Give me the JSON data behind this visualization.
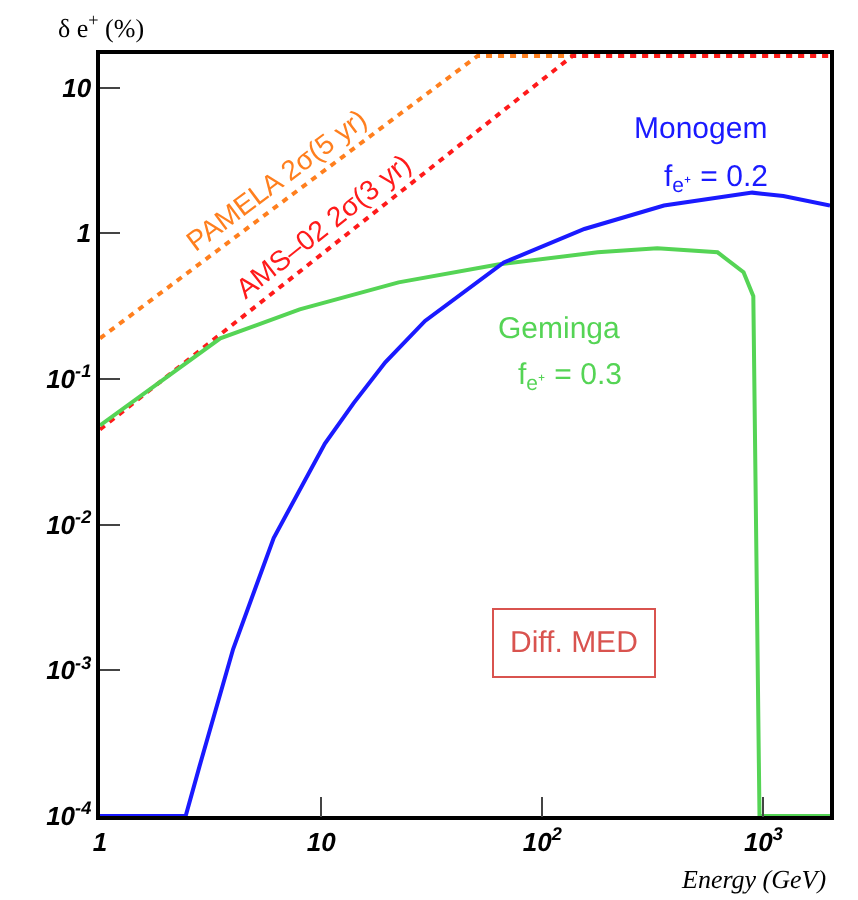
{
  "chart_data": {
    "type": "line",
    "ylabel": "δ e$^{+}$ (%)",
    "xlabel": "Energy (GeV)",
    "log": "xy",
    "legend": false,
    "marker": "none",
    "xlim": [
      1,
      2000
    ],
    "ylim": [
      0.0001,
      17
    ],
    "xticks": [
      1,
      10,
      {
        "value": 100,
        "label": "10$^{2}$"
      },
      {
        "value": 1000,
        "label": "10$^{3}$"
      }
    ],
    "yticks": [
      {
        "value": 0.0001,
        "label": "10$^{-4}$"
      },
      {
        "value": 0.001,
        "label": "10$^{-3}$"
      },
      {
        "value": 0.01,
        "label": "10$^{-2}$"
      },
      {
        "value": 0.1,
        "label": "10$^{-1}$"
      },
      1,
      10
    ],
    "series": [
      {
        "name": "PAMELA 2σ(5 yr)",
        "color": "#ff7f1e",
        "line_style": "dotted",
        "x": [
          1,
          51,
          2000
        ],
        "values": [
          0.19,
          16.5,
          16.5
        ]
      },
      {
        "name": "AMS–02 2σ(3 yr)",
        "color": "#ff1a1a",
        "line_style": "dotted",
        "x": [
          1,
          137,
          2000
        ],
        "values": [
          0.045,
          16.5,
          16.5
        ]
      },
      {
        "name": "Geminga",
        "color": "#55d455",
        "line_style": "solid",
        "x": [
          1,
          3.5,
          8,
          22.4,
          63,
          178,
          331,
          620,
          813,
          900,
          960,
          1000,
          2000
        ],
        "values": [
          0.048,
          0.19,
          0.3,
          0.46,
          0.61,
          0.74,
          0.79,
          0.74,
          0.54,
          0.37,
          0.0001,
          0.0001,
          0.0001
        ]
      },
      {
        "name": "Monogem",
        "color": "#1a1aff",
        "line_style": "solid",
        "x": [
          1,
          2.44,
          2.82,
          4.0,
          6.1,
          10.4,
          14,
          19.5,
          29.5,
          67,
          155,
          355,
          890,
          1230,
          2000
        ],
        "values": [
          0.0001,
          0.0001,
          0.00022,
          0.0014,
          0.0081,
          0.036,
          0.068,
          0.13,
          0.25,
          0.63,
          1.07,
          1.55,
          1.9,
          1.8,
          1.55
        ]
      }
    ],
    "annotations": [
      "f$_{e⁺}$ = 0.2",
      "f$_{e⁺}$ = 0.3",
      "Diff. MED"
    ]
  }
}
